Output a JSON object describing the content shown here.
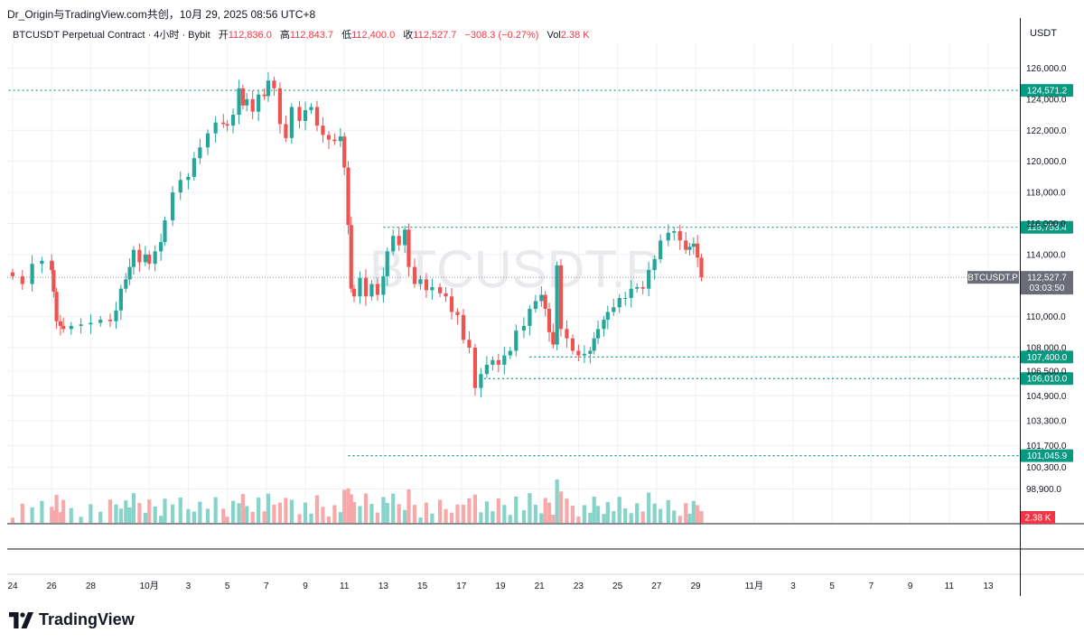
{
  "header": {
    "share_line": "Dr_Origin与TradingView.com共创，10月 29, 2025 08:56 UTC+8",
    "symbol_title": "BTCUSDT Perpetual Contract · 4小时 · Bybit",
    "ohlc": [
      {
        "label": "开",
        "value": "112,836.0"
      },
      {
        "label": "高",
        "value": "112,843.7"
      },
      {
        "label": "低",
        "value": "112,400.0"
      },
      {
        "label": "收",
        "value": "112,527.7"
      }
    ],
    "change": "−308.3 (−0.27%)",
    "vol_label": "Vol",
    "vol_value": "2.38 K",
    "currency": "USDT"
  },
  "watermark": "BTCUSDT.P",
  "price_axis": {
    "ticks": [
      {
        "label": "126,000.0",
        "value": 126000
      },
      {
        "label": "124,000.0",
        "value": 124000
      },
      {
        "label": "122,000.0",
        "value": 122000
      },
      {
        "label": "120,000.0",
        "value": 120000
      },
      {
        "label": "118,000.0",
        "value": 118000
      },
      {
        "label": "116,000.0",
        "value": 116000
      },
      {
        "label": "114,000.0",
        "value": 114000
      },
      {
        "label": "110,000.0",
        "value": 110000
      },
      {
        "label": "108,000.0",
        "value": 108000
      },
      {
        "label": "106,500.0",
        "value": 106500
      },
      {
        "label": "104,900.0",
        "value": 104900
      },
      {
        "label": "103,300.0",
        "value": 103300
      },
      {
        "label": "101,700.0",
        "value": 101700
      },
      {
        "label": "100,300.0",
        "value": 100300
      },
      {
        "label": "98,900.0",
        "value": 98900
      }
    ],
    "level_tags": [
      {
        "label": "124,571.2",
        "value": 124571.2,
        "start_day": -0.2
      },
      {
        "label": "115,753.4",
        "value": 115753.4,
        "start_day": 19.0
      },
      {
        "label": "107,400.0",
        "value": 107400,
        "start_day": 26.5
      },
      {
        "label": "106,010.0",
        "value": 106010,
        "start_day": 23.7
      },
      {
        "label": "101,045.9",
        "value": 101045.9,
        "start_day": 17.2
      }
    ],
    "current_tag": {
      "symbol": "BTCUSDT.P",
      "price": "112,527.7",
      "countdown": "03:03:50",
      "value": 112527.7
    },
    "volume_tag": "2.38 K"
  },
  "time_axis": {
    "ticks": [
      {
        "label": "24",
        "day": 0
      },
      {
        "label": "26",
        "day": 2
      },
      {
        "label": "28",
        "day": 4
      },
      {
        "label": "10月",
        "day": 7
      },
      {
        "label": "3",
        "day": 9
      },
      {
        "label": "5",
        "day": 11
      },
      {
        "label": "7",
        "day": 13
      },
      {
        "label": "9",
        "day": 15
      },
      {
        "label": "11",
        "day": 17
      },
      {
        "label": "13",
        "day": 19
      },
      {
        "label": "15",
        "day": 21
      },
      {
        "label": "17",
        "day": 23
      },
      {
        "label": "19",
        "day": 25
      },
      {
        "label": "21",
        "day": 27
      },
      {
        "label": "23",
        "day": 29
      },
      {
        "label": "25",
        "day": 31
      },
      {
        "label": "27",
        "day": 33
      },
      {
        "label": "29",
        "day": 35
      },
      {
        "label": "11月",
        "day": 38
      },
      {
        "label": "3",
        "day": 40
      },
      {
        "label": "5",
        "day": 42
      },
      {
        "label": "7",
        "day": 44
      },
      {
        "label": "9",
        "day": 46
      },
      {
        "label": "11",
        "day": 48
      },
      {
        "label": "13",
        "day": 50
      }
    ]
  },
  "colors": {
    "up": "#26a69a",
    "down": "#ef5350",
    "level_line": "#089981",
    "current_tag": "#6a6d78",
    "volume_tag": "#f23645",
    "grid": "#eef0f5"
  },
  "chart_data": {
    "type": "candlestick",
    "interval": "4h",
    "x_unit": "days since Sep 24, 2025",
    "ylim": [
      97800,
      127200
    ],
    "xlim": [
      -0.3,
      52.5
    ],
    "closes": [
      [
        0.0,
        112600
      ],
      [
        0.5,
        112100
      ],
      [
        1.0,
        113400
      ],
      [
        1.5,
        113600
      ],
      [
        2.0,
        113000
      ],
      [
        2.1,
        111600
      ],
      [
        2.25,
        109700
      ],
      [
        2.45,
        109400
      ],
      [
        2.6,
        109200
      ],
      [
        3.0,
        109400
      ],
      [
        3.5,
        109500
      ],
      [
        4.0,
        109600
      ],
      [
        4.5,
        109800
      ],
      [
        5.0,
        109700
      ],
      [
        5.3,
        110400
      ],
      [
        5.55,
        111800
      ],
      [
        5.8,
        112400
      ],
      [
        6.0,
        113200
      ],
      [
        6.2,
        114300
      ],
      [
        6.5,
        113500
      ],
      [
        6.8,
        114000
      ],
      [
        7.0,
        113400
      ],
      [
        7.3,
        114200
      ],
      [
        7.6,
        114800
      ],
      [
        7.8,
        116200
      ],
      [
        8.2,
        118000
      ],
      [
        8.6,
        118800
      ],
      [
        9.0,
        119000
      ],
      [
        9.3,
        120200
      ],
      [
        9.6,
        120900
      ],
      [
        10.0,
        121800
      ],
      [
        10.4,
        122500
      ],
      [
        10.8,
        122400
      ],
      [
        11.0,
        122300
      ],
      [
        11.3,
        123000
      ],
      [
        11.6,
        124700
      ],
      [
        11.8,
        123600
      ],
      [
        12.0,
        124000
      ],
      [
        12.3,
        123200
      ],
      [
        12.6,
        124300
      ],
      [
        12.9,
        124200
      ],
      [
        13.1,
        125200
      ],
      [
        13.4,
        124700
      ],
      [
        13.7,
        122400
      ],
      [
        14.0,
        121500
      ],
      [
        14.3,
        123500
      ],
      [
        14.7,
        122600
      ],
      [
        15.0,
        123300
      ],
      [
        15.3,
        123500
      ],
      [
        15.6,
        122300
      ],
      [
        15.9,
        121700
      ],
      [
        16.2,
        121400
      ],
      [
        16.5,
        121300
      ],
      [
        16.8,
        121600
      ],
      [
        17.0,
        119600
      ],
      [
        17.2,
        115900
      ],
      [
        17.35,
        111800
      ],
      [
        17.5,
        111300
      ],
      [
        17.8,
        112500
      ],
      [
        18.1,
        111300
      ],
      [
        18.4,
        112100
      ],
      [
        18.7,
        111400
      ],
      [
        19.0,
        112600
      ],
      [
        19.2,
        114200
      ],
      [
        19.5,
        115200
      ],
      [
        19.8,
        114600
      ],
      [
        20.1,
        115600
      ],
      [
        20.3,
        113200
      ],
      [
        20.6,
        112100
      ],
      [
        20.9,
        112400
      ],
      [
        21.2,
        111700
      ],
      [
        21.5,
        111900
      ],
      [
        21.9,
        111500
      ],
      [
        22.2,
        111300
      ],
      [
        22.5,
        110300
      ],
      [
        22.8,
        110100
      ],
      [
        23.1,
        108500
      ],
      [
        23.4,
        108000
      ],
      [
        23.7,
        105400
      ],
      [
        24.0,
        106300
      ],
      [
        24.3,
        106900
      ],
      [
        24.6,
        107200
      ],
      [
        24.9,
        106900
      ],
      [
        25.2,
        107500
      ],
      [
        25.5,
        107800
      ],
      [
        25.8,
        109100
      ],
      [
        26.2,
        109400
      ],
      [
        26.5,
        110500
      ],
      [
        26.8,
        111000
      ],
      [
        27.1,
        111400
      ],
      [
        27.3,
        110500
      ],
      [
        27.5,
        109000
      ],
      [
        27.7,
        108200
      ],
      [
        27.9,
        113300
      ],
      [
        28.1,
        109200
      ],
      [
        28.4,
        108600
      ],
      [
        28.7,
        107800
      ],
      [
        29.0,
        107500
      ],
      [
        29.3,
        107600
      ],
      [
        29.6,
        107800
      ],
      [
        29.8,
        108600
      ],
      [
        30.0,
        109200
      ],
      [
        30.3,
        109800
      ],
      [
        30.5,
        110300
      ],
      [
        30.8,
        110600
      ],
      [
        31.1,
        111200
      ],
      [
        31.4,
        111200
      ],
      [
        31.7,
        111800
      ],
      [
        32.0,
        111900
      ],
      [
        32.3,
        111800
      ],
      [
        32.6,
        113000
      ],
      [
        32.9,
        113700
      ],
      [
        33.2,
        114900
      ],
      [
        33.6,
        115400
      ],
      [
        33.9,
        115500
      ],
      [
        34.2,
        114900
      ],
      [
        34.5,
        114300
      ],
      [
        34.7,
        114500
      ],
      [
        34.9,
        114700
      ],
      [
        35.1,
        113800
      ],
      [
        35.3,
        112527.7
      ]
    ]
  }
}
